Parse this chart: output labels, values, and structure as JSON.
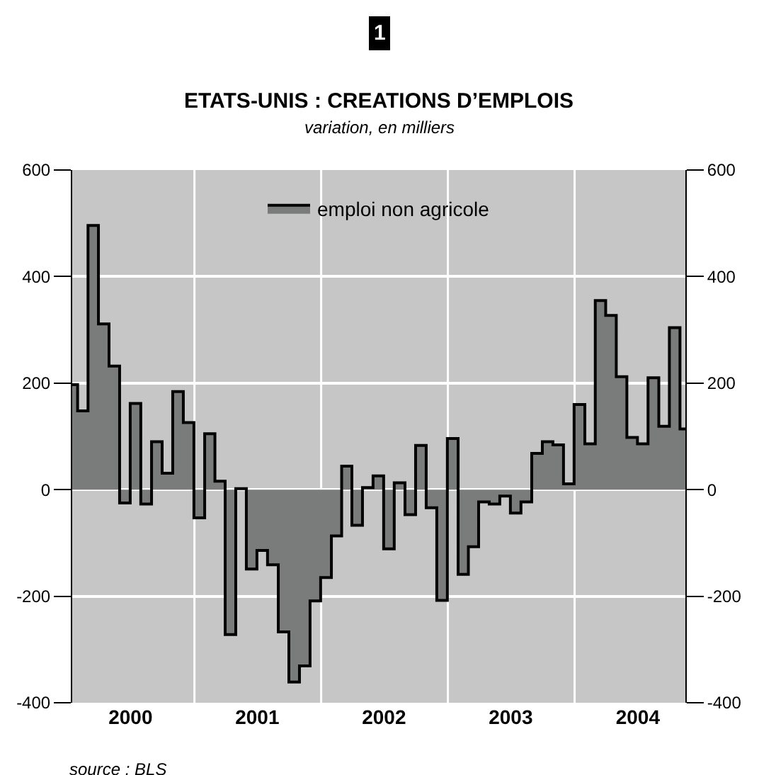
{
  "chart_data": {
    "type": "area",
    "title": "ETATS-UNIS : CREATIONS D’EMPLOIS",
    "subtitle": "variation, en milliers",
    "annotations": [
      "1",
      "source : BLS"
    ],
    "x": [
      "2000-01-15",
      "2000-02-15",
      "2000-03-15",
      "2000-04-15",
      "2000-05-15",
      "2000-06-15",
      "2000-07-15",
      "2000-08-15",
      "2000-09-15",
      "2000-10-15",
      "2000-11-15",
      "2000-12-15",
      "2001-01-15",
      "2001-02-15",
      "2001-03-15",
      "2001-04-15",
      "2001-05-15",
      "2001-06-15",
      "2001-07-15",
      "2001-08-15",
      "2001-09-15",
      "2001-10-15",
      "2001-11-15",
      "2001-12-15",
      "2002-01-15",
      "2002-02-15",
      "2002-03-15",
      "2002-04-15",
      "2002-05-15",
      "2002-06-15",
      "2002-07-15",
      "2002-08-15",
      "2002-09-15",
      "2002-10-15",
      "2002-11-15",
      "2002-12-15",
      "2003-01-15",
      "2003-02-15",
      "2003-03-15",
      "2003-04-15",
      "2003-05-15",
      "2003-06-15",
      "2003-07-15",
      "2003-08-15",
      "2003-09-15",
      "2003-10-15",
      "2003-11-15",
      "2003-12-15",
      "2004-01-15",
      "2004-02-15",
      "2004-03-15",
      "2004-04-15",
      "2004-05-15",
      "2004-06-15",
      "2004-07-15",
      "2004-08-15",
      "2004-09-15",
      "2004-10-15",
      "2004-11-15"
    ],
    "series": [
      {
        "name": "emploi non agricole",
        "color": "#7a7c7c",
        "values": [
          197,
          148,
          496,
          311,
          232,
          -25,
          162,
          -27,
          90,
          31,
          184,
          126,
          -53,
          105,
          16,
          -272,
          2,
          -149,
          -114,
          -141,
          -267,
          -361,
          -331,
          -209,
          -165,
          -87,
          44,
          -67,
          4,
          26,
          -111,
          13,
          -47,
          83,
          -34,
          -208,
          96,
          -159,
          -107,
          -23,
          -27,
          -12,
          -44,
          -23,
          68,
          90,
          84,
          11,
          160,
          86,
          355,
          327,
          212,
          98,
          86,
          210,
          119,
          304,
          114
        ]
      }
    ],
    "xlim": [
      "2000-01-15",
      "2004-11-15"
    ],
    "xticks": [
      {
        "value": "2000-07",
        "label": "2000"
      },
      {
        "value": "2001-01",
        "label": null
      },
      {
        "value": "2001-07",
        "label": "2001"
      },
      {
        "value": "2002-01",
        "label": null
      },
      {
        "value": "2002-07",
        "label": "2002"
      },
      {
        "value": "2003-01",
        "label": null
      },
      {
        "value": "2003-07",
        "label": "2003"
      },
      {
        "value": "2004-01",
        "label": null
      },
      {
        "value": "2004-07",
        "label": "2004"
      }
    ],
    "ylim": [
      -400,
      600
    ],
    "yticks": [
      -400,
      -200,
      0,
      200,
      400,
      600
    ],
    "y2lim": [
      -400,
      600
    ],
    "y2ticks": [
      -400,
      -200,
      0,
      200,
      400,
      600
    ],
    "grid": true,
    "legend": "top"
  }
}
